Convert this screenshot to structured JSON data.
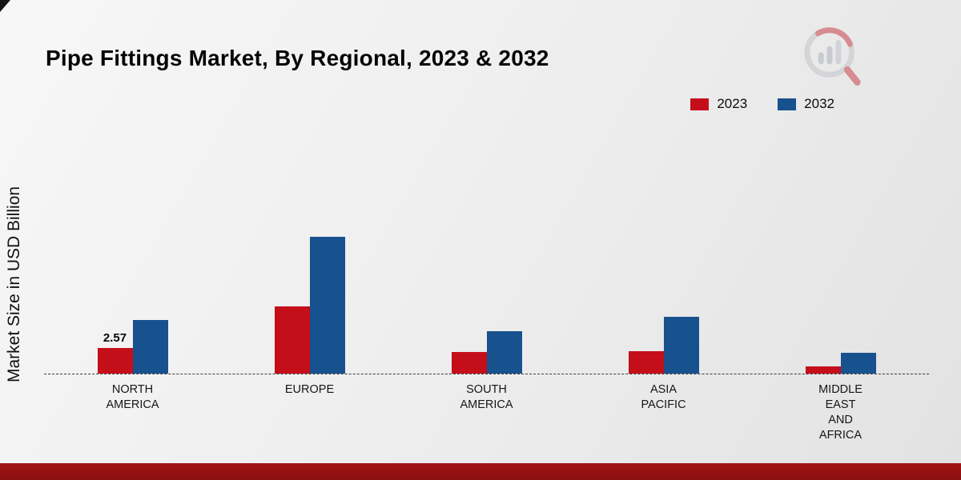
{
  "page": {
    "title": "Pipe Fittings Market, By Regional, 2023 & 2032",
    "y_axis_label": "Market Size in USD Billion"
  },
  "colors": {
    "series_2023": "#c40f1a",
    "series_2032": "#17518e",
    "footer_bar": "#8a1010",
    "background": "#ececec"
  },
  "logo": {
    "name": "market-research-chart-logo"
  },
  "chart_data": {
    "type": "bar",
    "title": "Pipe Fittings Market, By Regional, 2023 & 2032",
    "xlabel": "",
    "ylabel": "Market Size in USD Billion",
    "grid": false,
    "legend_position": "top-right",
    "baseline": "dashed",
    "ylim": [
      0,
      14
    ],
    "categories": [
      "NORTH AMERICA",
      "EUROPE",
      "SOUTH AMERICA",
      "ASIA PACIFIC",
      "MIDDLE EAST AND AFRICA"
    ],
    "category_lines": [
      [
        "NORTH",
        "AMERICA"
      ],
      [
        "EUROPE"
      ],
      [
        "SOUTH",
        "AMERICA"
      ],
      [
        "ASIA",
        "PACIFIC"
      ],
      [
        "MIDDLE",
        "EAST",
        "AND",
        "AFRICA"
      ]
    ],
    "series": [
      {
        "name": "2023",
        "color": "#c40f1a",
        "values": [
          2.57,
          6.8,
          2.2,
          2.3,
          0.75
        ]
      },
      {
        "name": "2032",
        "color": "#17518e",
        "values": [
          5.4,
          13.8,
          4.3,
          5.7,
          2.1
        ]
      }
    ],
    "data_labels": [
      {
        "series": "2023",
        "category": "NORTH AMERICA",
        "text": "2.57"
      }
    ]
  }
}
